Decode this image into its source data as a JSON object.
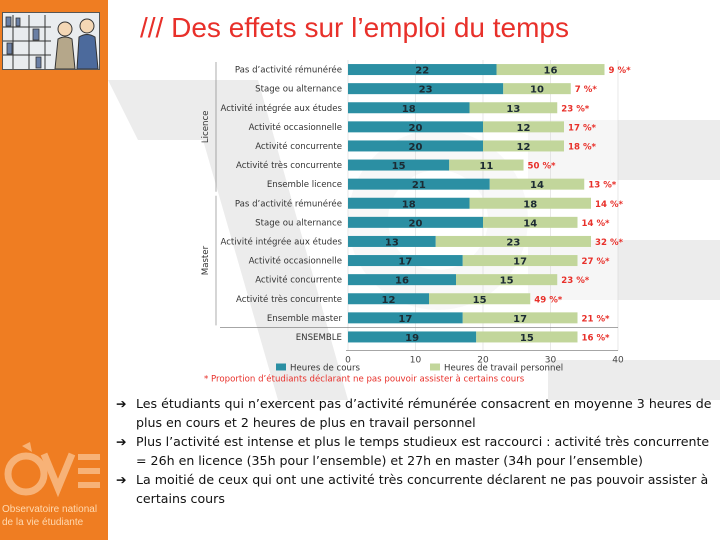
{
  "title": "/// Des effets sur l’emploi du temps",
  "logo": {
    "line1": "Observatoire national",
    "line2": "de la vie étudiante",
    "mark": "OVE"
  },
  "colors": {
    "orange": "#ef7d22",
    "title_red": "#e8302a",
    "course_bar": "#2b8fa3",
    "work_bar": "#c2d69b",
    "pct_red": "#e8302a"
  },
  "bullets": [
    {
      "arrow": "➔",
      "text": "Les étudiants qui n’exercent pas d’activité rémunérée consacrent en moyenne 3 heures de plus en cours et 2 heures de plus en travail personnel"
    },
    {
      "arrow": "➔",
      "text": "Plus l’activité est intense et plus le temps studieux est raccourci : activité très concurrente = 26h en licence (35h pour l’ensemble) et 27h en master (34h pour l’ensemble)"
    },
    {
      "arrow": "➔",
      "text": "La moitié de ceux qui ont une activité très concurrente déclarent ne pas pouvoir assister à certains cours"
    }
  ],
  "chart_data": {
    "type": "bar",
    "orientation": "horizontal",
    "stacked": true,
    "xlim": [
      0,
      40
    ],
    "xticks": [
      0,
      10,
      20,
      30,
      40
    ],
    "groups": [
      {
        "label": "Licence",
        "categories": [
          0,
          1,
          2,
          3,
          4,
          5,
          6
        ]
      },
      {
        "label": "Master",
        "categories": [
          7,
          8,
          9,
          10,
          11,
          12,
          13
        ]
      }
    ],
    "categories": [
      "Pas d’activité rémunérée",
      "Stage ou alternance",
      "Activité intégrée aux études",
      "Activité occasionnelle",
      "Activité concurrente",
      "Activité très concurrente",
      "Ensemble licence",
      "Pas d’activité rémunérée",
      "Stage ou alternance",
      "Activité intégrée aux études",
      "Activité occasionnelle",
      "Activité concurrente",
      "Activité très concurrente",
      "Ensemble master",
      "ENSEMBLE"
    ],
    "series": [
      {
        "name": "Heures de cours",
        "color": "#2b8fa3",
        "values": [
          22,
          23,
          18,
          20,
          20,
          15,
          21,
          18,
          20,
          13,
          17,
          16,
          12,
          17,
          19
        ]
      },
      {
        "name": "Heures de travail personnel",
        "color": "#c2d69b",
        "values": [
          16,
          10,
          13,
          12,
          12,
          11,
          14,
          18,
          14,
          23,
          17,
          15,
          15,
          17,
          15
        ]
      }
    ],
    "annotations": [
      "9 %*",
      "7 %*",
      "23 %*",
      "17 %*",
      "18 %*",
      "50 %*",
      "13 %*",
      "14 %*",
      "14 %*",
      "32 %*",
      "27 %*",
      "23 %*",
      "49 %*",
      "21 %*",
      "16 %*"
    ],
    "footnote": "* Proportion d’étudiants déclarant ne pas pouvoir assister à certains cours"
  }
}
